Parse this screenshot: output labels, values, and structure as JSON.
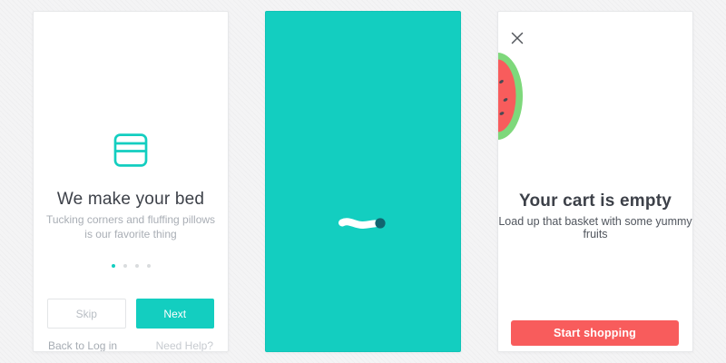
{
  "onboarding": {
    "icon": "bed-icon",
    "title": "We make your bed",
    "subtitle_line1": "Tucking corners and fluffing pillows",
    "subtitle_line2": "is our favorite thing",
    "pagination": {
      "total": 4,
      "active": 0
    },
    "skip_label": "Skip",
    "next_label": "Next",
    "back_to_login_label": "Back to Log in",
    "need_help_label": "Need Help?"
  },
  "loading": {
    "illustration": "inchworm-icon",
    "background_color": "#13CEC0"
  },
  "cart": {
    "close_icon": "x-icon",
    "illustration": "watermelon-icon",
    "title": "Your cart is empty",
    "subtitle": "Load up that basket with some yummy fruits",
    "start_shopping_label": "Start shopping"
  },
  "colors": {
    "teal": "#13CEC0",
    "coral": "#F85C5C",
    "title_text": "#3d4149",
    "muted_text": "#a9aeb5",
    "watermelon_green": "#7ED87B",
    "watermelon_red": "#F85C5C",
    "seed": "#4A4953",
    "worm_head": "#116570"
  }
}
